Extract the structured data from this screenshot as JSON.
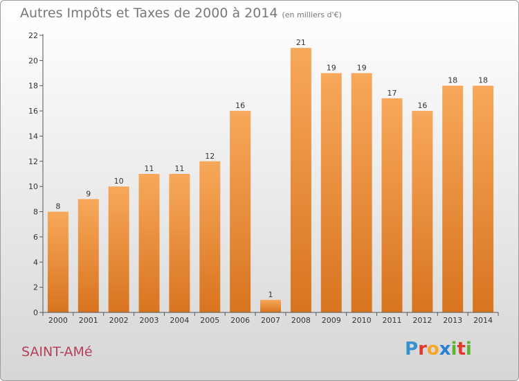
{
  "title": {
    "main": "Autres Impôts et Taxes de 2000 à 2014",
    "unit": "(en milliers d'€)"
  },
  "commune": "SAINT-AMé",
  "logo": {
    "text": "Proxiti",
    "letters": [
      {
        "char": "P",
        "color": "#3a8fd0"
      },
      {
        "char": "r",
        "color": "#e0392c"
      },
      {
        "char": "o",
        "color": "#f5a623"
      },
      {
        "char": "x",
        "color": "#2a7fd4"
      },
      {
        "char": "i",
        "color": "#5cb531"
      },
      {
        "char": "t",
        "color": "#e0392c"
      },
      {
        "char": "i",
        "color": "#5cb531"
      }
    ]
  },
  "colors": {
    "bar_top": "#f7a85a",
    "bar_bottom": "#d8741f"
  },
  "chart_data": {
    "type": "bar",
    "title": "Autres Impôts et Taxes de 2000 à 2014",
    "categories": [
      "2000",
      "2001",
      "2002",
      "2003",
      "2004",
      "2005",
      "2006",
      "2007",
      "2008",
      "2009",
      "2010",
      "2011",
      "2012",
      "2013",
      "2014"
    ],
    "values": [
      8,
      9,
      10,
      11,
      11,
      12,
      16,
      1,
      21,
      19,
      19,
      17,
      16,
      18,
      18
    ],
    "ylim": [
      0,
      22
    ],
    "yticks": [
      0,
      2,
      4,
      6,
      8,
      10,
      12,
      14,
      16,
      18,
      20,
      22
    ],
    "grid": false,
    "xlabel": "",
    "ylabel": ""
  }
}
